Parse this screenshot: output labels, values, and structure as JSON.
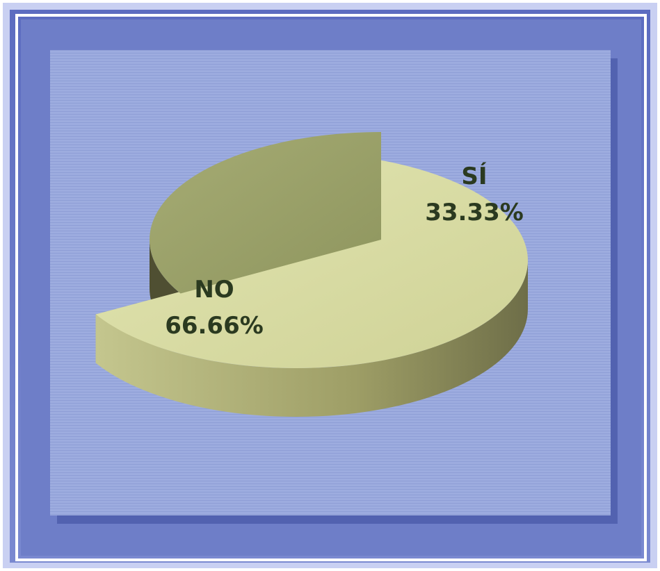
{
  "chart_data": {
    "type": "pie",
    "title": "",
    "slices": [
      {
        "label": "NO",
        "value": 66.66,
        "value_label": "66.66%",
        "color": "#d7daa0",
        "side_color": "#a8a86e"
      },
      {
        "label": "SÍ",
        "value": 33.33,
        "value_label": "33.33%",
        "color": "#9aa169",
        "side_color": "#4f4f32"
      }
    ],
    "legend": "none",
    "background_color": "#98a8e0",
    "frame_color": "#6f7fc8"
  }
}
